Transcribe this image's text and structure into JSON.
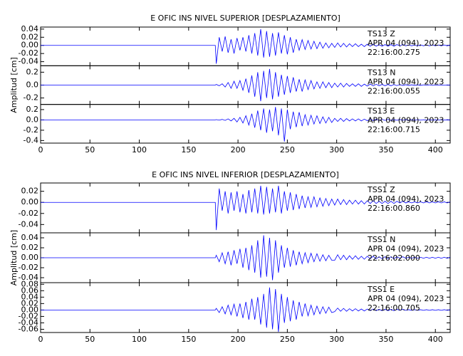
{
  "chart_data": [
    {
      "type": "line",
      "title": "E OFIC INS NIVEL SUPERIOR [DESPLAZAMIENTO]",
      "ylabel": "Amplitud [cm]",
      "xlim": [
        0,
        415
      ],
      "xticks": [
        0,
        50,
        100,
        150,
        200,
        250,
        300,
        350,
        400
      ],
      "x": [
        0,
        177,
        178,
        181,
        184,
        187,
        190,
        193,
        196,
        199,
        202,
        205,
        208,
        211,
        214,
        217,
        220,
        223,
        226,
        229,
        232,
        235,
        238,
        241,
        244,
        247,
        250,
        253,
        256,
        259,
        262,
        265,
        268,
        271,
        274,
        277,
        280,
        283,
        286,
        289,
        292,
        295,
        298,
        301,
        304,
        307,
        310,
        313,
        316,
        319,
        322,
        325,
        328,
        331,
        334,
        337,
        340,
        343,
        346,
        349,
        352,
        355,
        358,
        361,
        364,
        367,
        370,
        373,
        376,
        379,
        382,
        385,
        388,
        391,
        394,
        397,
        400,
        403,
        406,
        409,
        412,
        415
      ],
      "panels": [
        {
          "annotation": [
            "TS13   Z",
            "APR 04 (094), 2023",
            "22:16:00.275"
          ],
          "color": "#0000ff",
          "ylim": [
            -0.05,
            0.045
          ],
          "yticks": [
            0.04,
            0.02,
            {
              "value": 0,
              "label": "0.00"
            },
            -0.02,
            -0.04
          ],
          "values": [
            0,
            0,
            -0.045,
            0.02,
            -0.015,
            0.022,
            -0.018,
            0.015,
            -0.02,
            0.018,
            -0.012,
            0.02,
            -0.015,
            0.025,
            -0.02,
            0.03,
            -0.025,
            0.04,
            -0.03,
            0.035,
            -0.028,
            0.03,
            -0.025,
            0.032,
            -0.02,
            0.025,
            -0.022,
            0.02,
            -0.018,
            0.015,
            -0.012,
            0.014,
            -0.01,
            0.012,
            -0.009,
            0.01,
            -0.008,
            0.008,
            -0.007,
            0.006,
            -0.006,
            0.005,
            -0.005,
            0.006,
            -0.004,
            0.005,
            -0.004,
            0.004,
            -0.003,
            0.004,
            -0.003,
            0.003,
            -0.003,
            0.003,
            -0.002,
            0.003,
            -0.002,
            0.002,
            -0.002,
            0.002,
            -0.002,
            0.002,
            -0.002,
            0.002,
            -0.001,
            0.002,
            -0.001,
            0.001,
            -0.001,
            0.001,
            -0.001,
            0.001,
            -0.001,
            0.001,
            -0.001,
            0.001,
            -0.001,
            0.001,
            -0.001,
            0.001,
            -0.001,
            0.001
          ]
        },
        {
          "annotation": [
            "TS13   N",
            "APR 04 (094), 2023",
            "22:16:00.055"
          ],
          "color": "#0000ff",
          "ylim": [
            -0.3,
            0.3
          ],
          "yticks": [
            0.2,
            {
              "value": 0,
              "label": "0.0"
            },
            -0.2
          ],
          "values": [
            0,
            0,
            0.01,
            -0.01,
            0.02,
            -0.03,
            0.04,
            -0.05,
            0.06,
            -0.05,
            0.07,
            -0.08,
            0.1,
            -0.12,
            0.15,
            -0.18,
            0.2,
            -0.25,
            0.22,
            -0.2,
            0.25,
            -0.22,
            0.2,
            -0.18,
            0.16,
            -0.15,
            0.14,
            -0.12,
            0.12,
            -0.1,
            0.09,
            -0.1,
            0.08,
            -0.07,
            0.07,
            -0.06,
            0.05,
            -0.05,
            0.05,
            -0.04,
            0.04,
            -0.04,
            0.03,
            -0.03,
            0.03,
            -0.03,
            0.025,
            -0.02,
            0.02,
            -0.02,
            0.02,
            -0.02,
            0.015,
            -0.015,
            0.015,
            -0.012,
            0.012,
            -0.01,
            0.01,
            -0.01,
            0.01,
            -0.01,
            0.008,
            -0.008,
            0.008,
            -0.006,
            0.006,
            -0.006,
            0.005,
            -0.005,
            0.005,
            -0.005,
            0.004,
            -0.004,
            0.004,
            -0.004,
            0.003,
            -0.003,
            0.003,
            -0.003,
            0.003,
            -0.003
          ]
        },
        {
          "annotation": [
            "TS13   E",
            "APR 04 (094), 2023",
            "22:16:00.715"
          ],
          "color": "#0000ff",
          "ylim": [
            -0.45,
            0.3
          ],
          "yticks": [
            0.2,
            {
              "value": 0,
              "label": "0.0"
            },
            -0.2,
            -0.4
          ],
          "values": [
            0,
            0,
            0.005,
            -0.005,
            0.01,
            -0.01,
            0.02,
            -0.02,
            0.03,
            -0.04,
            0.05,
            -0.06,
            0.08,
            -0.1,
            0.12,
            -0.15,
            0.18,
            -0.2,
            0.22,
            -0.25,
            0.2,
            -0.22,
            0.25,
            -0.3,
            0.22,
            -0.42,
            0.2,
            -0.18,
            0.16,
            -0.14,
            0.15,
            -0.12,
            0.1,
            -0.1,
            0.09,
            -0.08,
            0.08,
            -0.07,
            0.06,
            -0.06,
            0.05,
            -0.05,
            0.03,
            -0.03,
            0.03,
            -0.03,
            0.025,
            -0.02,
            0.02,
            -0.02,
            0.02,
            -0.02,
            0.015,
            -0.015,
            0.015,
            -0.012,
            0.012,
            -0.01,
            0.01,
            -0.01,
            0.01,
            -0.01,
            0.008,
            -0.008,
            0.008,
            -0.006,
            0.006,
            -0.006,
            0.005,
            -0.005,
            0.005,
            -0.005,
            0.004,
            -0.004,
            0.004,
            -0.004,
            0.003,
            -0.003,
            0.003,
            -0.003,
            0.003,
            -0.003
          ]
        }
      ]
    },
    {
      "type": "line",
      "title": "E OFIC INS NIVEL INFERIOR [DESPLAZAMIENTO]",
      "ylabel": "Amplitud [cm]",
      "xlim": [
        0,
        415
      ],
      "xticks": [
        0,
        50,
        100,
        150,
        200,
        250,
        300,
        350,
        400
      ],
      "x": [
        0,
        177,
        178,
        181,
        184,
        187,
        190,
        193,
        196,
        199,
        202,
        205,
        208,
        211,
        214,
        217,
        220,
        223,
        226,
        229,
        232,
        235,
        238,
        241,
        244,
        247,
        250,
        253,
        256,
        259,
        262,
        265,
        268,
        271,
        274,
        277,
        280,
        283,
        286,
        289,
        292,
        295,
        298,
        301,
        304,
        307,
        310,
        313,
        316,
        319,
        322,
        325,
        328,
        331,
        334,
        337,
        340,
        343,
        346,
        349,
        352,
        355,
        358,
        361,
        364,
        367,
        370,
        373,
        376,
        379,
        382,
        385,
        388,
        391,
        394,
        397,
        400,
        403,
        406,
        409,
        412,
        415
      ],
      "panels": [
        {
          "annotation": [
            "TSS1   Z",
            "APR 04 (094), 2023",
            "22:16:00.860"
          ],
          "color": "#0000ff",
          "ylim": [
            -0.055,
            0.035
          ],
          "yticks": [
            0.02,
            {
              "value": 0,
              "label": "0.00"
            },
            -0.02,
            -0.04
          ],
          "values": [
            0,
            0,
            -0.05,
            0.025,
            -0.015,
            0.02,
            -0.02,
            0.018,
            -0.015,
            0.02,
            -0.018,
            0.015,
            -0.02,
            0.022,
            -0.018,
            0.025,
            -0.02,
            0.03,
            -0.022,
            0.028,
            -0.02,
            0.025,
            -0.018,
            0.03,
            -0.02,
            0.02,
            -0.015,
            0.018,
            -0.014,
            0.015,
            -0.012,
            0.012,
            -0.01,
            0.01,
            -0.009,
            0.01,
            -0.008,
            0.008,
            -0.007,
            0.007,
            -0.006,
            0.006,
            -0.005,
            0.006,
            -0.004,
            0.005,
            -0.004,
            0.004,
            -0.003,
            0.004,
            -0.003,
            0.003,
            -0.003,
            0.003,
            -0.002,
            0.003,
            -0.002,
            0.002,
            -0.002,
            0.002,
            -0.002,
            0.002,
            -0.002,
            0.002,
            -0.001,
            0.002,
            -0.001,
            0.001,
            -0.001,
            0.001,
            -0.001,
            0.001,
            -0.001,
            0.001,
            -0.001,
            0.001,
            -0.001,
            0.001,
            -0.001,
            0.001,
            -0.001,
            0.001
          ]
        },
        {
          "annotation": [
            "TSS1   N",
            "APR 04 (094), 2023",
            "22:16:02.000"
          ],
          "color": "#0000ff",
          "ylim": [
            -0.05,
            0.05
          ],
          "yticks": [
            0.04,
            0.02,
            {
              "value": 0,
              "label": "0.00"
            },
            -0.02,
            -0.04
          ],
          "values": [
            0,
            0,
            0.005,
            -0.008,
            0.01,
            -0.012,
            0.012,
            -0.015,
            0.015,
            -0.012,
            0.018,
            -0.02,
            0.02,
            -0.025,
            0.025,
            -0.03,
            0.035,
            -0.04,
            0.045,
            -0.038,
            0.04,
            -0.045,
            0.035,
            -0.03,
            0.025,
            -0.02,
            0.02,
            -0.018,
            0.015,
            -0.015,
            0.012,
            -0.012,
            0.01,
            -0.01,
            0.009,
            -0.008,
            0.008,
            -0.007,
            0.006,
            -0.006,
            0.005,
            -0.005,
            -0.005,
            0.006,
            -0.004,
            0.005,
            -0.004,
            0.004,
            -0.003,
            0.004,
            -0.003,
            0.003,
            -0.003,
            0.003,
            -0.002,
            0.003,
            -0.002,
            0.002,
            -0.002,
            0.002,
            -0.002,
            0.002,
            -0.002,
            0.002,
            -0.001,
            0.002,
            -0.001,
            0.001,
            -0.001,
            0.001,
            -0.001,
            0.001,
            -0.001,
            0.001,
            -0.001,
            0.001,
            -0.001,
            0.001,
            -0.001,
            0.001,
            -0.001,
            0.001
          ]
        },
        {
          "annotation": [
            "TSS1   E",
            "APR 04 (094), 2023",
            "22:16:00.705"
          ],
          "color": "#0000ff",
          "ylim": [
            -0.07,
            0.085
          ],
          "yticks": [
            0.08,
            0.06,
            0.04,
            0.02,
            {
              "value": 0,
              "label": "0.00"
            },
            -0.02,
            -0.04,
            -0.06
          ],
          "values": [
            0,
            0,
            0.005,
            -0.008,
            0.01,
            -0.012,
            0.015,
            -0.015,
            0.018,
            -0.02,
            0.02,
            -0.025,
            0.025,
            -0.03,
            0.035,
            -0.03,
            0.04,
            -0.045,
            0.05,
            -0.055,
            0.07,
            -0.06,
            0.065,
            -0.068,
            0.05,
            -0.04,
            0.04,
            -0.035,
            0.03,
            -0.03,
            0.025,
            -0.02,
            0.02,
            -0.018,
            0.015,
            -0.015,
            0.012,
            -0.012,
            0.01,
            -0.01,
            0.009,
            -0.008,
            -0.005,
            0.006,
            -0.004,
            0.005,
            -0.004,
            0.004,
            -0.003,
            0.004,
            -0.003,
            0.003,
            -0.003,
            0.003,
            -0.002,
            0.003,
            -0.002,
            0.002,
            -0.002,
            0.002,
            -0.002,
            0.002,
            -0.002,
            0.002,
            -0.001,
            0.002,
            -0.001,
            0.001,
            -0.001,
            0.001,
            -0.001,
            0.001,
            -0.001,
            0.001,
            -0.001,
            0.001,
            -0.001,
            0.001,
            -0.001,
            0.001,
            -0.001,
            0.001
          ]
        }
      ]
    }
  ]
}
